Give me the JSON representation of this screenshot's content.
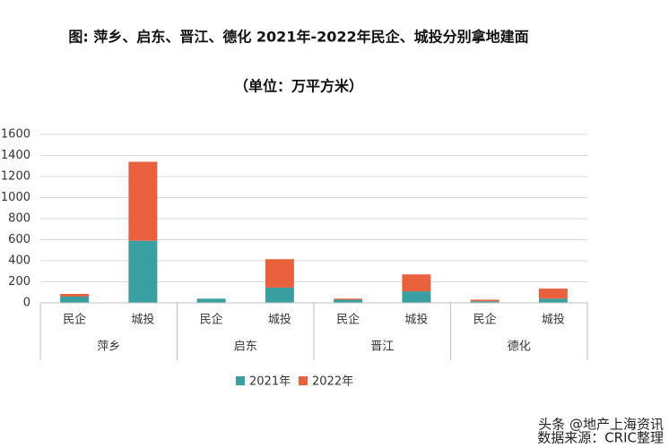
{
  "chart_data": {
    "type": "bar",
    "stacked": true,
    "title": "图: 萍乡、启东、晋江、德化 2021年-2022年民企、城投分别拿地建面",
    "subtitle": "（单位：万平方米）",
    "groups": [
      "萍乡",
      "启东",
      "晋江",
      "德化"
    ],
    "categories": [
      "民企",
      "城投",
      "民企",
      "城投",
      "民企",
      "城投",
      "民企",
      "城投"
    ],
    "series": [
      {
        "name": "2021年",
        "color": "#3a9fa0",
        "values": [
          60,
          590,
          40,
          145,
          30,
          110,
          15,
          40
        ]
      },
      {
        "name": "2022年",
        "color": "#e8603c",
        "values": [
          25,
          750,
          0,
          270,
          10,
          160,
          15,
          95
        ]
      }
    ],
    "ylim": [
      0,
      1600
    ],
    "yticks": [
      0,
      200,
      400,
      600,
      800,
      1000,
      1200,
      1400,
      1600
    ],
    "grid": true,
    "legend": "bottom",
    "watermark": "头条 @地产上海资讯",
    "source": "数据来源：CRIC整理"
  }
}
